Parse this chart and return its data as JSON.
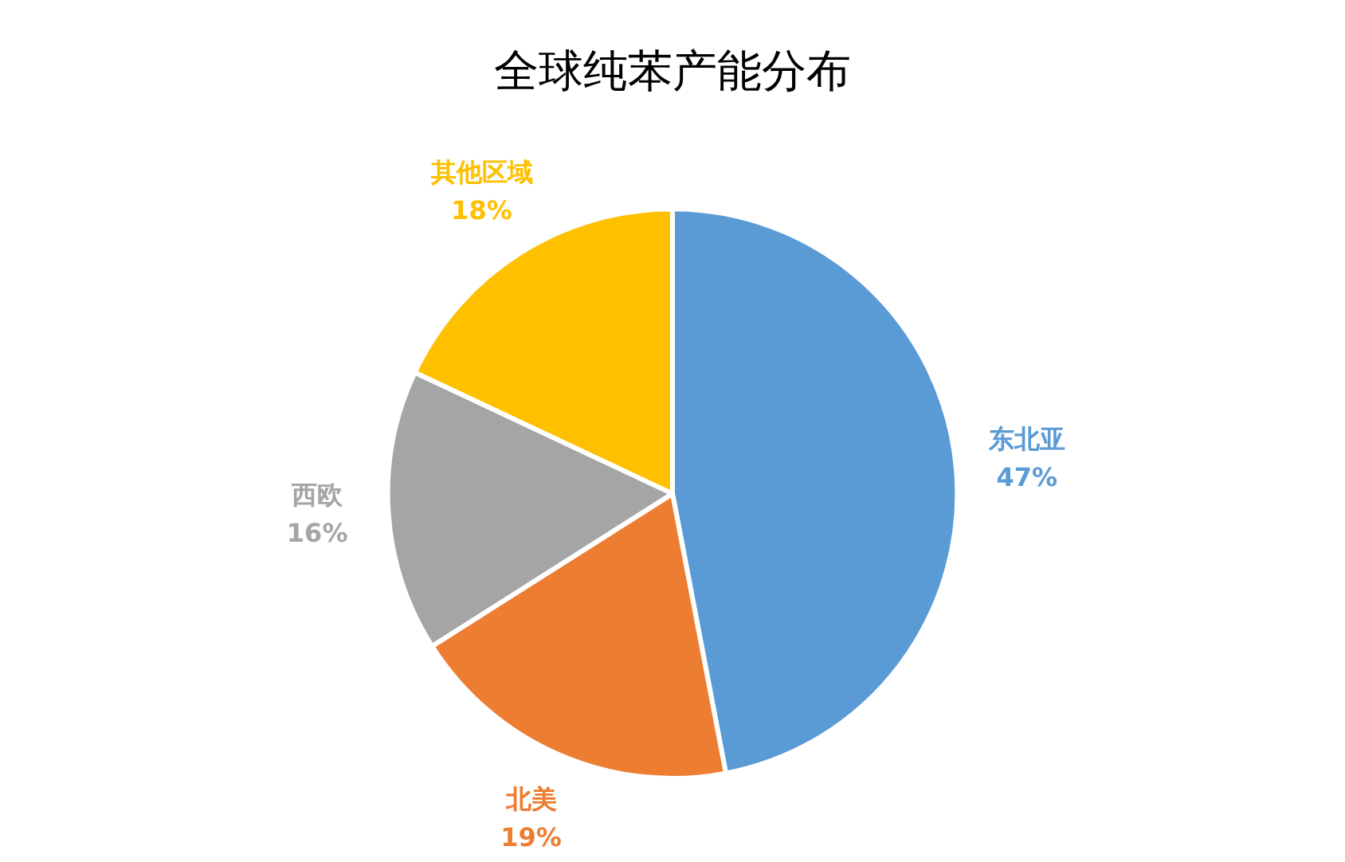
{
  "chart_data": {
    "type": "pie",
    "title": "全球纯苯产能分布",
    "categories": [
      "东北亚",
      "北美",
      "西欧",
      "其他区域"
    ],
    "values": [
      47,
      19,
      16,
      18
    ],
    "value_labels": [
      "47%",
      "19%",
      "16%",
      "18%"
    ],
    "colors": [
      "#5b9bd5",
      "#ed7d31",
      "#a5a5a5",
      "#ffc000"
    ],
    "legend": false
  }
}
